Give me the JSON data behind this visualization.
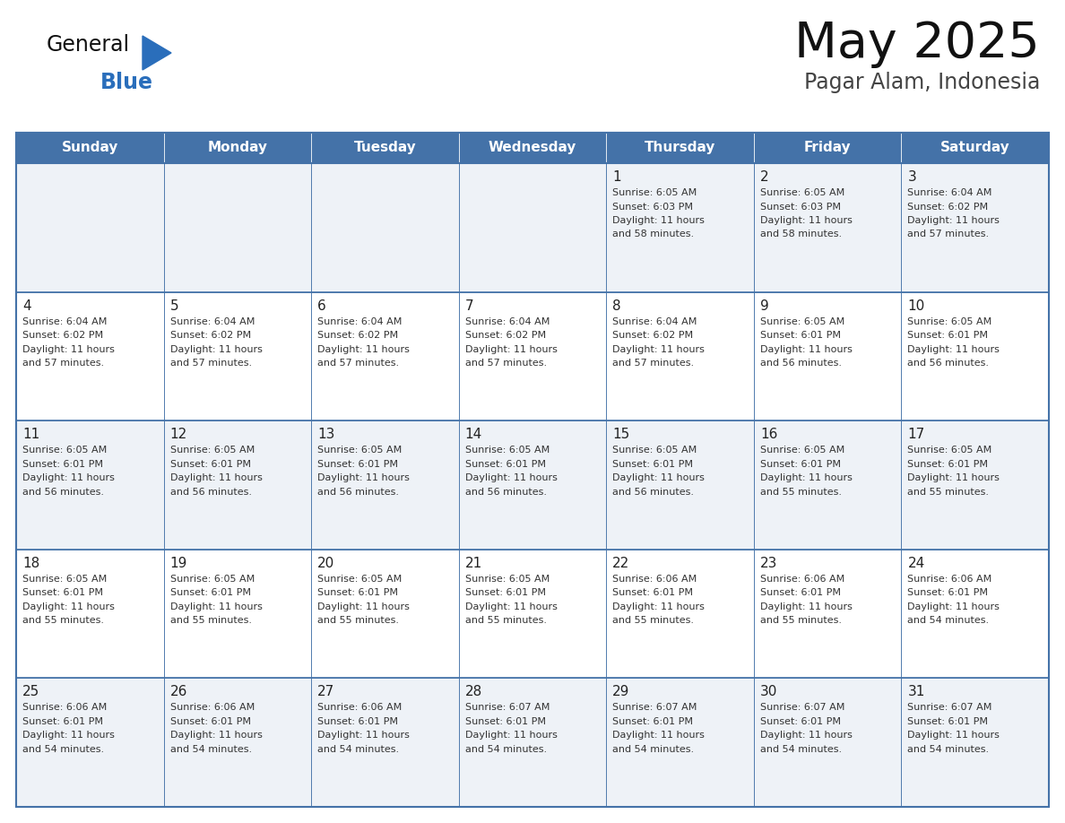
{
  "title": "May 2025",
  "subtitle": "Pagar Alam, Indonesia",
  "days_of_week": [
    "Sunday",
    "Monday",
    "Tuesday",
    "Wednesday",
    "Thursday",
    "Friday",
    "Saturday"
  ],
  "header_bg": "#4472a8",
  "header_text": "#ffffff",
  "cell_bg_light": "#eef2f7",
  "cell_bg_white": "#ffffff",
  "border_color": "#4472a8",
  "day_num_color": "#222222",
  "cell_text_color": "#333333",
  "title_color": "#111111",
  "subtitle_color": "#444444",
  "logo_general_color": "#111111",
  "logo_blue_color": "#2a6ebb",
  "logo_triangle_color": "#2a6ebb",
  "calendar": [
    [
      null,
      null,
      null,
      null,
      {
        "day": 1,
        "sunrise": "6:05 AM",
        "sunset": "6:03 PM",
        "daylight": "11 hours and 58 minutes"
      },
      {
        "day": 2,
        "sunrise": "6:05 AM",
        "sunset": "6:03 PM",
        "daylight": "11 hours and 58 minutes"
      },
      {
        "day": 3,
        "sunrise": "6:04 AM",
        "sunset": "6:02 PM",
        "daylight": "11 hours and 57 minutes"
      }
    ],
    [
      {
        "day": 4,
        "sunrise": "6:04 AM",
        "sunset": "6:02 PM",
        "daylight": "11 hours and 57 minutes"
      },
      {
        "day": 5,
        "sunrise": "6:04 AM",
        "sunset": "6:02 PM",
        "daylight": "11 hours and 57 minutes"
      },
      {
        "day": 6,
        "sunrise": "6:04 AM",
        "sunset": "6:02 PM",
        "daylight": "11 hours and 57 minutes"
      },
      {
        "day": 7,
        "sunrise": "6:04 AM",
        "sunset": "6:02 PM",
        "daylight": "11 hours and 57 minutes"
      },
      {
        "day": 8,
        "sunrise": "6:04 AM",
        "sunset": "6:02 PM",
        "daylight": "11 hours and 57 minutes"
      },
      {
        "day": 9,
        "sunrise": "6:05 AM",
        "sunset": "6:01 PM",
        "daylight": "11 hours and 56 minutes"
      },
      {
        "day": 10,
        "sunrise": "6:05 AM",
        "sunset": "6:01 PM",
        "daylight": "11 hours and 56 minutes"
      }
    ],
    [
      {
        "day": 11,
        "sunrise": "6:05 AM",
        "sunset": "6:01 PM",
        "daylight": "11 hours and 56 minutes"
      },
      {
        "day": 12,
        "sunrise": "6:05 AM",
        "sunset": "6:01 PM",
        "daylight": "11 hours and 56 minutes"
      },
      {
        "day": 13,
        "sunrise": "6:05 AM",
        "sunset": "6:01 PM",
        "daylight": "11 hours and 56 minutes"
      },
      {
        "day": 14,
        "sunrise": "6:05 AM",
        "sunset": "6:01 PM",
        "daylight": "11 hours and 56 minutes"
      },
      {
        "day": 15,
        "sunrise": "6:05 AM",
        "sunset": "6:01 PM",
        "daylight": "11 hours and 56 minutes"
      },
      {
        "day": 16,
        "sunrise": "6:05 AM",
        "sunset": "6:01 PM",
        "daylight": "11 hours and 55 minutes"
      },
      {
        "day": 17,
        "sunrise": "6:05 AM",
        "sunset": "6:01 PM",
        "daylight": "11 hours and 55 minutes"
      }
    ],
    [
      {
        "day": 18,
        "sunrise": "6:05 AM",
        "sunset": "6:01 PM",
        "daylight": "11 hours and 55 minutes"
      },
      {
        "day": 19,
        "sunrise": "6:05 AM",
        "sunset": "6:01 PM",
        "daylight": "11 hours and 55 minutes"
      },
      {
        "day": 20,
        "sunrise": "6:05 AM",
        "sunset": "6:01 PM",
        "daylight": "11 hours and 55 minutes"
      },
      {
        "day": 21,
        "sunrise": "6:05 AM",
        "sunset": "6:01 PM",
        "daylight": "11 hours and 55 minutes"
      },
      {
        "day": 22,
        "sunrise": "6:06 AM",
        "sunset": "6:01 PM",
        "daylight": "11 hours and 55 minutes"
      },
      {
        "day": 23,
        "sunrise": "6:06 AM",
        "sunset": "6:01 PM",
        "daylight": "11 hours and 55 minutes"
      },
      {
        "day": 24,
        "sunrise": "6:06 AM",
        "sunset": "6:01 PM",
        "daylight": "11 hours and 54 minutes"
      }
    ],
    [
      {
        "day": 25,
        "sunrise": "6:06 AM",
        "sunset": "6:01 PM",
        "daylight": "11 hours and 54 minutes"
      },
      {
        "day": 26,
        "sunrise": "6:06 AM",
        "sunset": "6:01 PM",
        "daylight": "11 hours and 54 minutes"
      },
      {
        "day": 27,
        "sunrise": "6:06 AM",
        "sunset": "6:01 PM",
        "daylight": "11 hours and 54 minutes"
      },
      {
        "day": 28,
        "sunrise": "6:07 AM",
        "sunset": "6:01 PM",
        "daylight": "11 hours and 54 minutes"
      },
      {
        "day": 29,
        "sunrise": "6:07 AM",
        "sunset": "6:01 PM",
        "daylight": "11 hours and 54 minutes"
      },
      {
        "day": 30,
        "sunrise": "6:07 AM",
        "sunset": "6:01 PM",
        "daylight": "11 hours and 54 minutes"
      },
      {
        "day": 31,
        "sunrise": "6:07 AM",
        "sunset": "6:01 PM",
        "daylight": "11 hours and 54 minutes"
      }
    ]
  ]
}
